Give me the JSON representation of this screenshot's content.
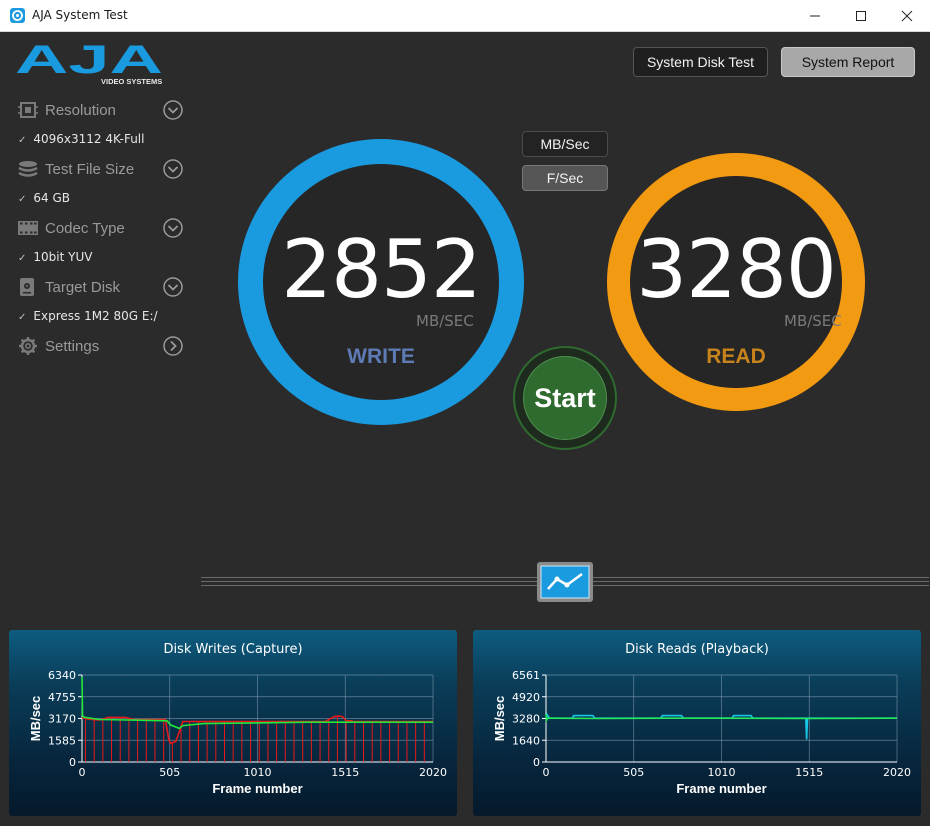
{
  "window": {
    "title": "AJA System Test"
  },
  "logo": {
    "brand": "AJA",
    "subtitle": "VIDEO SYSTEMS"
  },
  "sidebar": {
    "items": [
      {
        "label": "Resolution",
        "value": "4096x3112 4K-Full",
        "icon": "resolution-icon"
      },
      {
        "label": "Test File Size",
        "value": "64 GB",
        "icon": "stack-icon"
      },
      {
        "label": "Codec Type",
        "value": "10bit YUV",
        "icon": "film-icon"
      },
      {
        "label": "Target Disk",
        "value": "Express 1M2 80G E:/",
        "icon": "disk-icon"
      },
      {
        "label": "Settings",
        "icon": "gear-icon"
      }
    ]
  },
  "toolbar": {
    "system_disk_test": "System Disk Test",
    "system_report": "System Report"
  },
  "units": {
    "mbsec": "MB/Sec",
    "fsec": "F/Sec"
  },
  "write": {
    "value": "2852",
    "unit": "MB/SEC",
    "label": "WRITE",
    "color": "#1a9be0"
  },
  "read": {
    "value": "3280",
    "unit": "MB/SEC",
    "label": "READ",
    "color": "#f29a12"
  },
  "start_label": "Start",
  "chart_data": [
    {
      "type": "line",
      "title": "Disk Writes (Capture)",
      "xlabel": "Frame number",
      "ylabel": "MB/sec",
      "xlim": [
        0,
        2020
      ],
      "ylim": [
        0,
        6340
      ],
      "xticks": [
        "0",
        "505",
        "1010",
        "1515",
        "2020"
      ],
      "yticks": [
        "6340",
        "4755",
        "3170",
        "1585",
        "0"
      ],
      "series": [
        {
          "color": "#e81818",
          "x": [
            0,
            5,
            20,
            40,
            100,
            150,
            250,
            300,
            480,
            500,
            510,
            540,
            560,
            580,
            600,
            800,
            1000,
            1200,
            1400,
            1450,
            1480,
            1500,
            1520,
            1550,
            1560,
            1800,
            2020
          ],
          "y": [
            3170,
            3250,
            3170,
            3120,
            3050,
            3250,
            3250,
            3100,
            3100,
            1600,
            1350,
            1500,
            2200,
            2950,
            2950,
            2950,
            2950,
            2950,
            2950,
            3300,
            3350,
            3300,
            3000,
            3000,
            2950,
            2950,
            2950
          ]
        },
        {
          "color": "#23e83b",
          "x": [
            0,
            3,
            8,
            20,
            100,
            300,
            490,
            510,
            560,
            580,
            700,
            1000,
            1300,
            1500,
            1700,
            2020
          ],
          "y": [
            6200,
            3400,
            3280,
            3250,
            3100,
            3050,
            3000,
            2700,
            2450,
            2650,
            2800,
            2850,
            2900,
            2900,
            2900,
            2900
          ]
        }
      ]
    },
    {
      "type": "line",
      "title": "Disk Reads (Playback)",
      "xlabel": "Frame number",
      "ylabel": "MB/sec",
      "xlim": [
        0,
        2020
      ],
      "ylim": [
        0,
        6561
      ],
      "xticks": [
        "0",
        "505",
        "1010",
        "1515",
        "2020"
      ],
      "yticks": [
        "6561",
        "4920",
        "3280",
        "1640",
        "0"
      ],
      "series": [
        {
          "color": "#18c8e8",
          "x": [
            0,
            5,
            20,
            150,
            160,
            270,
            280,
            660,
            670,
            780,
            790,
            1070,
            1080,
            1180,
            1190,
            1495,
            1500,
            1505,
            1510,
            2020
          ],
          "y": [
            3300,
            3600,
            3300,
            3300,
            3500,
            3500,
            3300,
            3300,
            3500,
            3500,
            3300,
            3300,
            3500,
            3500,
            3300,
            3300,
            1700,
            3300,
            3300,
            3300
          ]
        },
        {
          "color": "#23e85a",
          "x": [
            0,
            3,
            10,
            30,
            300,
            700,
            1000,
            1500,
            2020
          ],
          "y": [
            3600,
            3150,
            3300,
            3300,
            3280,
            3300,
            3300,
            3280,
            3300
          ]
        }
      ]
    }
  ]
}
